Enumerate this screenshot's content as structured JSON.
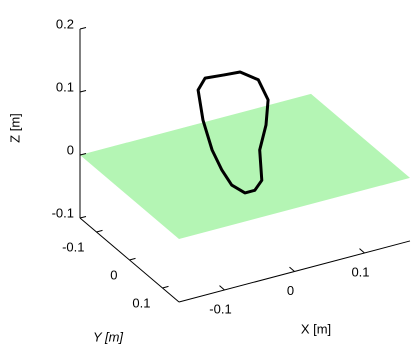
{
  "chart_data": {
    "type": "line3d",
    "xlabel": "X [m]",
    "ylabel": "Y [m]",
    "zlabel": "Z [m]",
    "xlim": [
      -0.165,
      0.165
    ],
    "ylim": [
      -0.15,
      0.15
    ],
    "zlim": [
      -0.1,
      0.2
    ],
    "xticks": [
      -0.1,
      0,
      0.1
    ],
    "yticks": [
      -0.1,
      0,
      0.1
    ],
    "zticks": [
      -0.1,
      0,
      0.1,
      0.2
    ],
    "plane": {
      "z": 0,
      "color": "#b4f5b4"
    },
    "series": [
      {
        "color": "#000000",
        "x": [
          -0.029,
          -0.057,
          -0.067,
          -0.06,
          -0.047,
          -0.033,
          -0.019,
          0.0,
          0.014,
          0.024,
          0.021,
          0.03,
          0.033,
          0.019,
          -0.007,
          -0.029
        ],
        "y": [
          0,
          0,
          0,
          0,
          0,
          0,
          0,
          0,
          0,
          0,
          0,
          0,
          0,
          0,
          0,
          0
        ],
        "z": [
          0.154,
          0.157,
          0.141,
          0.091,
          0.04,
          0.004,
          -0.024,
          -0.042,
          -0.042,
          -0.029,
          0.02,
          0.057,
          0.096,
          0.132,
          0.152,
          0.154
        ]
      }
    ]
  }
}
